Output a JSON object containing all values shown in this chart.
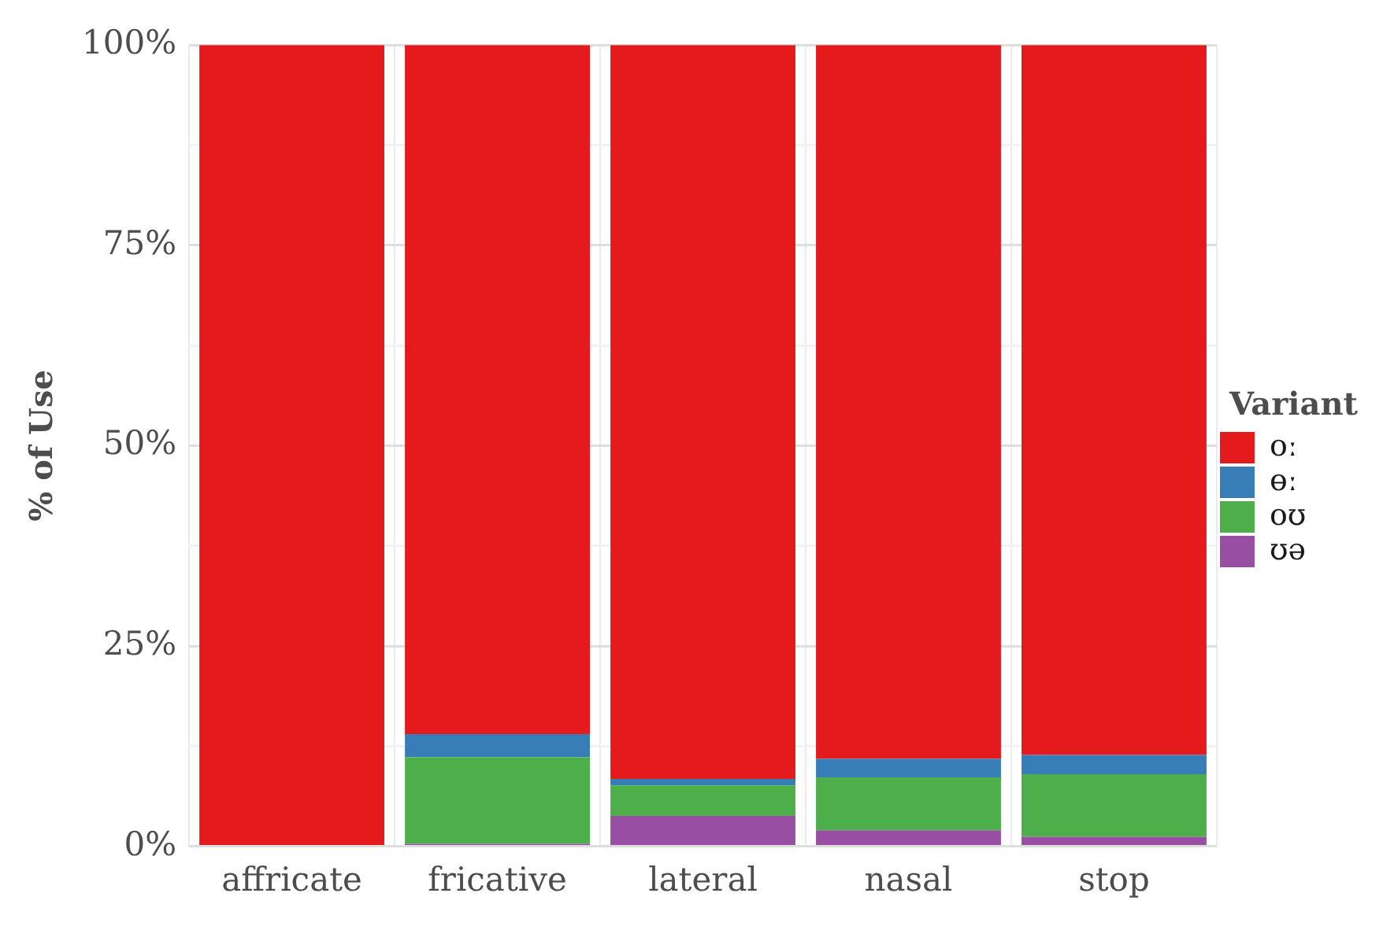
{
  "chart_data": {
    "type": "bar",
    "stacked": true,
    "ylabel": "% of Use",
    "legend_title": "Variant",
    "legend": "right",
    "grid": true,
    "categories": [
      "affricate",
      "fricative",
      "lateral",
      "nasal",
      "stop"
    ],
    "series": [
      {
        "name": "ʊə",
        "color": "#984ea3",
        "values": [
          0,
          0.3,
          3.8,
          2.0,
          1.2
        ]
      },
      {
        "name": "oʊ",
        "color": "#4daf4a",
        "values": [
          0,
          10.8,
          3.8,
          6.6,
          7.8
        ]
      },
      {
        "name": "ɵː",
        "color": "#377eb8",
        "values": [
          0,
          2.9,
          0.8,
          2.3,
          2.4
        ]
      },
      {
        "name": "oː",
        "color": "#e41a1c",
        "values": [
          100,
          86.0,
          91.6,
          89.1,
          88.6
        ]
      }
    ],
    "ylim": [
      0,
      100
    ],
    "yticks": [
      {
        "value": 0,
        "label": "0%"
      },
      {
        "value": 12.5,
        "label": null
      },
      {
        "value": 25,
        "label": "25%"
      },
      {
        "value": 37.5,
        "label": null
      },
      {
        "value": 50,
        "label": "50%"
      },
      {
        "value": 62.5,
        "label": null
      },
      {
        "value": 75,
        "label": "75%"
      },
      {
        "value": 87.5,
        "label": null
      },
      {
        "value": 100,
        "label": "100%"
      }
    ]
  }
}
